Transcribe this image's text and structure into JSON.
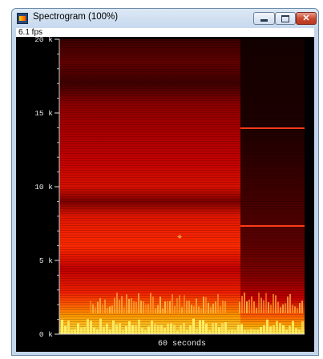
{
  "window": {
    "title": "Spectrogram (100%)",
    "icon": "spectrogram-app-icon",
    "controls": {
      "minimize_icon": "minimize-icon",
      "maximize_icon": "maximize-icon",
      "close_icon": "close-icon"
    }
  },
  "status": {
    "fps": "6.1 fps"
  },
  "chart_data": {
    "type": "heatmap",
    "title": "",
    "xlabel": "60  seconds",
    "ylabel": "",
    "yticks": [
      {
        "value": 0,
        "label": "0 k"
      },
      {
        "value": 5000,
        "label": "5 k"
      },
      {
        "value": 10000,
        "label": "10 k"
      },
      {
        "value": 15000,
        "label": "15 k"
      },
      {
        "value": 20000,
        "label": "20 k"
      }
    ],
    "ylim": [
      0,
      20000
    ],
    "colormap": [
      "#000000",
      "#3a0000",
      "#7a0000",
      "#c80000",
      "#ff2a00",
      "#ff7a00",
      "#ffd200",
      "#ffff80"
    ],
    "note": "intensity colormap: black (low) to red to yellow (high)"
  }
}
